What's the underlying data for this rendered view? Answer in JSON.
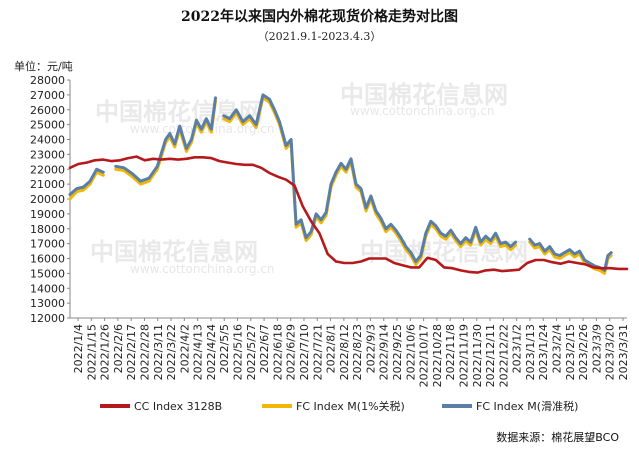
{
  "header": {
    "title": "2022年以来国内外棉花现货价格走势对比图",
    "subtitle": "（2021.9.1-2023.4.3）",
    "unit": "单位：元/吨"
  },
  "watermark": {
    "text": "中国棉花信息网",
    "url": "www.cottonchina.org.cn"
  },
  "source": "数据来源：棉花展望BCO",
  "colors": {
    "cc": "#b5191b",
    "fc_tariff": "#f2b705",
    "fc_sliding": "#5a7fa6"
  },
  "chart_data": {
    "type": "line",
    "title": "2022年以来国内外棉花现货价格走势对比图",
    "subtitle": "（2021.9.1-2023.4.3）",
    "ylabel": "单位：元/吨",
    "ylim": [
      12000,
      28000
    ],
    "yticks": [
      12000,
      13000,
      14000,
      15000,
      16000,
      17000,
      18000,
      19000,
      20000,
      21000,
      22000,
      23000,
      24000,
      25000,
      26000,
      27000,
      28000
    ],
    "x_ticks": [
      "2022/1/4",
      "2022/1/15",
      "2022/1/26",
      "2022/2/6",
      "2022/2/17",
      "2022/2/28",
      "2022/3/11",
      "2022/3/22",
      "2022/4/2",
      "2022/4/13",
      "2022/4/24",
      "2022/5/5",
      "2022/5/16",
      "2022/5/27",
      "2022/6/7",
      "2022/6/18",
      "2022/6/29",
      "2022/7/10",
      "2022/7/21",
      "2022/8/1",
      "2022/8/12",
      "2022/8/23",
      "2022/9/3",
      "2022/9/14",
      "2022/9/25",
      "2022/10/6",
      "2022/10/17",
      "2022/10/28",
      "2022/11/8",
      "2022/11/19",
      "2022/11/30",
      "2022/12/11",
      "2022/12/22",
      "2023/1/2",
      "2023/1/13",
      "2023/1/24",
      "2023/2/4",
      "2023/2/15",
      "2023/2/26",
      "2023/3/9",
      "2023/3/20",
      "2023/3/31"
    ],
    "grid": false,
    "legend_position": "bottom",
    "series": [
      {
        "name": "CC Index 3128B",
        "color": "#b5191b",
        "points": [
          [
            0,
            22100
          ],
          [
            1,
            22350
          ],
          [
            2,
            22450
          ],
          [
            3,
            22600
          ],
          [
            4,
            22650
          ],
          [
            5,
            22550
          ],
          [
            6,
            22600
          ],
          [
            7,
            22750
          ],
          [
            8,
            22850
          ],
          [
            9,
            22600
          ],
          [
            10,
            22700
          ],
          [
            11,
            22650
          ],
          [
            12,
            22700
          ],
          [
            13,
            22650
          ],
          [
            14,
            22700
          ],
          [
            15,
            22800
          ],
          [
            16,
            22800
          ],
          [
            17,
            22750
          ],
          [
            18,
            22550
          ],
          [
            19,
            22450
          ],
          [
            20,
            22350
          ],
          [
            21,
            22300
          ],
          [
            22,
            22300
          ],
          [
            23,
            22100
          ],
          [
            24,
            21750
          ],
          [
            25,
            21500
          ],
          [
            26,
            21300
          ],
          [
            27,
            20900
          ],
          [
            28,
            19500
          ],
          [
            29,
            18500
          ],
          [
            30,
            17700
          ],
          [
            31,
            16300
          ],
          [
            32,
            15800
          ],
          [
            33,
            15700
          ],
          [
            34,
            15700
          ],
          [
            35,
            15800
          ],
          [
            36,
            16000
          ],
          [
            37,
            16000
          ],
          [
            38,
            16000
          ],
          [
            39,
            15700
          ],
          [
            40,
            15550
          ],
          [
            41,
            15400
          ],
          [
            42,
            15400
          ],
          [
            43,
            16050
          ],
          [
            44,
            15900
          ],
          [
            45,
            15400
          ],
          [
            46,
            15350
          ],
          [
            47,
            15200
          ],
          [
            48,
            15100
          ],
          [
            49,
            15050
          ],
          [
            50,
            15200
          ],
          [
            51,
            15250
          ],
          [
            52,
            15150
          ],
          [
            53,
            15200
          ],
          [
            54,
            15250
          ],
          [
            55,
            15700
          ],
          [
            56,
            15900
          ],
          [
            57,
            15900
          ],
          [
            58,
            15750
          ],
          [
            59,
            15650
          ],
          [
            60,
            15800
          ],
          [
            61,
            15700
          ],
          [
            62,
            15600
          ],
          [
            63,
            15400
          ],
          [
            64,
            15350
          ],
          [
            65,
            15350
          ],
          [
            66,
            15300
          ],
          [
            67,
            15300
          ]
        ]
      },
      {
        "name": "FC Index M(1%关税)",
        "color": "#f2b705",
        "points": [
          [
            0,
            20000
          ],
          [
            0.8,
            20500
          ],
          [
            1.6,
            20600
          ],
          [
            2.4,
            21000
          ],
          [
            3.2,
            21800
          ],
          [
            4,
            21600
          ],
          [
            null,
            null
          ],
          [
            5.5,
            22000
          ],
          [
            6.5,
            21900
          ],
          [
            7.5,
            21500
          ],
          [
            8.5,
            21000
          ],
          [
            9.5,
            21200
          ],
          [
            10.5,
            22000
          ],
          [
            11.5,
            23800
          ],
          [
            12,
            24200
          ],
          [
            12.6,
            23500
          ],
          [
            13.2,
            24700
          ],
          [
            14,
            23200
          ],
          [
            14.6,
            23800
          ],
          [
            15.2,
            25100
          ],
          [
            15.8,
            24500
          ],
          [
            16.4,
            25200
          ],
          [
            17,
            24500
          ],
          [
            17.5,
            26600
          ],
          [
            null,
            null
          ],
          [
            18.5,
            25400
          ],
          [
            19.2,
            25200
          ],
          [
            20,
            25800
          ],
          [
            20.8,
            25000
          ],
          [
            21.6,
            25400
          ],
          [
            22.4,
            24800
          ],
          [
            23.2,
            26800
          ],
          [
            24,
            26500
          ],
          [
            24.6,
            25800
          ],
          [
            25.2,
            25000
          ],
          [
            26,
            23400
          ],
          [
            26.6,
            23800
          ],
          [
            27.2,
            18100
          ],
          [
            27.8,
            18400
          ],
          [
            28.4,
            17200
          ],
          [
            29,
            17600
          ],
          [
            29.6,
            18800
          ],
          [
            30.2,
            18400
          ],
          [
            30.8,
            18900
          ],
          [
            31.4,
            20800
          ],
          [
            32,
            21600
          ],
          [
            32.6,
            22200
          ],
          [
            33.2,
            21800
          ],
          [
            33.8,
            22500
          ],
          [
            34.4,
            20800
          ],
          [
            35,
            20500
          ],
          [
            35.6,
            19200
          ],
          [
            36.2,
            20000
          ],
          [
            36.8,
            19000
          ],
          [
            37.4,
            18500
          ],
          [
            38,
            17800
          ],
          [
            38.6,
            18100
          ],
          [
            39.2,
            17700
          ],
          [
            39.8,
            17200
          ],
          [
            40.4,
            16600
          ],
          [
            41,
            16200
          ],
          [
            41.6,
            15600
          ],
          [
            42.2,
            16000
          ],
          [
            42.8,
            17500
          ],
          [
            43.4,
            18300
          ],
          [
            44,
            18000
          ],
          [
            44.6,
            17500
          ],
          [
            45.2,
            17300
          ],
          [
            45.8,
            17700
          ],
          [
            46.4,
            17200
          ],
          [
            47,
            16800
          ],
          [
            47.6,
            17200
          ],
          [
            48.2,
            16900
          ],
          [
            48.8,
            17900
          ],
          [
            49.4,
            16900
          ],
          [
            50,
            17300
          ],
          [
            50.6,
            17000
          ],
          [
            51.2,
            17500
          ],
          [
            51.8,
            16800
          ],
          [
            52.4,
            16900
          ],
          [
            53,
            16600
          ],
          [
            53.6,
            16900
          ],
          [
            null,
            null
          ],
          [
            55.3,
            17100
          ],
          [
            55.9,
            16700
          ],
          [
            56.5,
            16800
          ],
          [
            57.1,
            16300
          ],
          [
            57.7,
            16600
          ],
          [
            58.3,
            16100
          ],
          [
            58.9,
            16000
          ],
          [
            59.5,
            16200
          ],
          [
            60.1,
            16400
          ],
          [
            60.7,
            16100
          ],
          [
            61.3,
            16300
          ],
          [
            61.9,
            15700
          ],
          [
            62.5,
            15500
          ],
          [
            63.1,
            15300
          ],
          [
            63.7,
            15200
          ],
          [
            64.3,
            15000
          ],
          [
            64.7,
            16000
          ],
          [
            65.1,
            16200
          ]
        ]
      },
      {
        "name": "FC Index M(滑准税)",
        "color": "#5a7fa6",
        "points": [
          [
            0,
            20300
          ],
          [
            0.8,
            20700
          ],
          [
            1.6,
            20800
          ],
          [
            2.4,
            21200
          ],
          [
            3.2,
            22000
          ],
          [
            4,
            21800
          ],
          [
            null,
            null
          ],
          [
            5.5,
            22200
          ],
          [
            6.5,
            22100
          ],
          [
            7.5,
            21700
          ],
          [
            8.5,
            21200
          ],
          [
            9.5,
            21400
          ],
          [
            10.5,
            22200
          ],
          [
            11.5,
            24000
          ],
          [
            12,
            24400
          ],
          [
            12.6,
            23700
          ],
          [
            13.2,
            24900
          ],
          [
            14,
            23400
          ],
          [
            14.6,
            24000
          ],
          [
            15.2,
            25300
          ],
          [
            15.8,
            24700
          ],
          [
            16.4,
            25400
          ],
          [
            17,
            24700
          ],
          [
            17.5,
            26800
          ],
          [
            null,
            null
          ],
          [
            18.5,
            25600
          ],
          [
            19.2,
            25400
          ],
          [
            20,
            26000
          ],
          [
            20.8,
            25200
          ],
          [
            21.6,
            25600
          ],
          [
            22.4,
            25000
          ],
          [
            23.2,
            27000
          ],
          [
            24,
            26700
          ],
          [
            24.6,
            26000
          ],
          [
            25.2,
            25200
          ],
          [
            26,
            23600
          ],
          [
            26.6,
            24000
          ],
          [
            27.2,
            18300
          ],
          [
            27.8,
            18600
          ],
          [
            28.4,
            17400
          ],
          [
            29,
            17800
          ],
          [
            29.6,
            19000
          ],
          [
            30.2,
            18600
          ],
          [
            30.8,
            19100
          ],
          [
            31.4,
            21000
          ],
          [
            32,
            21800
          ],
          [
            32.6,
            22400
          ],
          [
            33.2,
            22000
          ],
          [
            33.8,
            22700
          ],
          [
            34.4,
            21000
          ],
          [
            35,
            20700
          ],
          [
            35.6,
            19400
          ],
          [
            36.2,
            20200
          ],
          [
            36.8,
            19200
          ],
          [
            37.4,
            18700
          ],
          [
            38,
            18000
          ],
          [
            38.6,
            18300
          ],
          [
            39.2,
            17900
          ],
          [
            39.8,
            17400
          ],
          [
            40.4,
            16800
          ],
          [
            41,
            16400
          ],
          [
            41.6,
            15800
          ],
          [
            42.2,
            16200
          ],
          [
            42.8,
            17700
          ],
          [
            43.4,
            18500
          ],
          [
            44,
            18200
          ],
          [
            44.6,
            17700
          ],
          [
            45.2,
            17500
          ],
          [
            45.8,
            17900
          ],
          [
            46.4,
            17400
          ],
          [
            47,
            17000
          ],
          [
            47.6,
            17400
          ],
          [
            48.2,
            17100
          ],
          [
            48.8,
            18100
          ],
          [
            49.4,
            17100
          ],
          [
            50,
            17500
          ],
          [
            50.6,
            17200
          ],
          [
            51.2,
            17700
          ],
          [
            51.8,
            17000
          ],
          [
            52.4,
            17100
          ],
          [
            53,
            16800
          ],
          [
            53.6,
            17100
          ],
          [
            null,
            null
          ],
          [
            55.3,
            17300
          ],
          [
            55.9,
            16900
          ],
          [
            56.5,
            17000
          ],
          [
            57.1,
            16500
          ],
          [
            57.7,
            16800
          ],
          [
            58.3,
            16300
          ],
          [
            58.9,
            16200
          ],
          [
            59.5,
            16400
          ],
          [
            60.1,
            16600
          ],
          [
            60.7,
            16300
          ],
          [
            61.3,
            16500
          ],
          [
            61.9,
            15900
          ],
          [
            62.5,
            15700
          ],
          [
            63.1,
            15500
          ],
          [
            63.7,
            15400
          ],
          [
            64.3,
            15200
          ],
          [
            64.7,
            16200
          ],
          [
            65.1,
            16400
          ]
        ]
      }
    ]
  }
}
